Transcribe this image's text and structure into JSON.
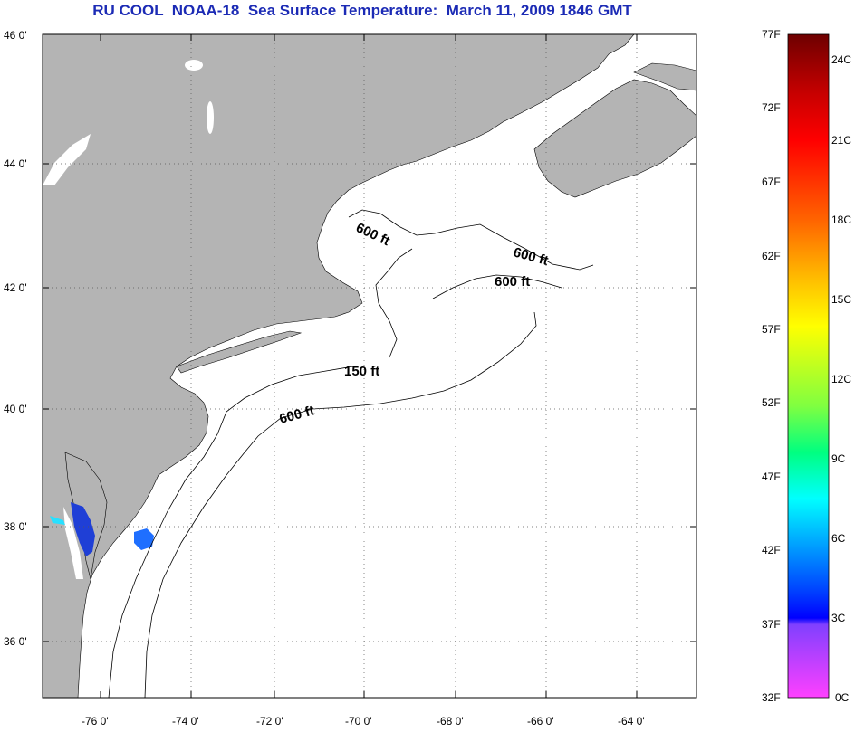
{
  "title": "RU COOL  NOAA-18  Sea Surface Temperature:  March 11, 2009 1846 GMT",
  "map": {
    "lat_range": [
      35,
      46
    ],
    "lon_range": [
      -77,
      -63
    ],
    "lat_ticks": [
      "46 0'",
      "44 0'",
      "42 0'",
      "40 0'",
      "38 0'",
      "36 0'"
    ],
    "lon_ticks": [
      "-76 0'",
      "-74 0'",
      "-72 0'",
      "-70 0'",
      "-68 0'",
      "-66 0'",
      "-64 0'"
    ],
    "land_color": "#b4b4b4",
    "contour_labels": [
      "600 ft",
      "600 ft",
      "600 ft",
      "150 ft",
      "600 ft"
    ]
  },
  "colorbar": {
    "fahrenheit_labels": [
      "77F",
      "72F",
      "67F",
      "62F",
      "57F",
      "52F",
      "47F",
      "42F",
      "37F",
      "32F"
    ],
    "celsius_labels": [
      "24C",
      "21C",
      "18C",
      "15C",
      "12C",
      "9C",
      "6C",
      "3C",
      "0C"
    ],
    "color_stops": [
      "#6e0000",
      "#c80000",
      "#ff0000",
      "#ff6400",
      "#ffc800",
      "#ffff00",
      "#80ff40",
      "#00ff80",
      "#00ffff",
      "#00a0ff",
      "#0040ff",
      "#0000ff",
      "#8040ff",
      "#ff40ff"
    ]
  }
}
